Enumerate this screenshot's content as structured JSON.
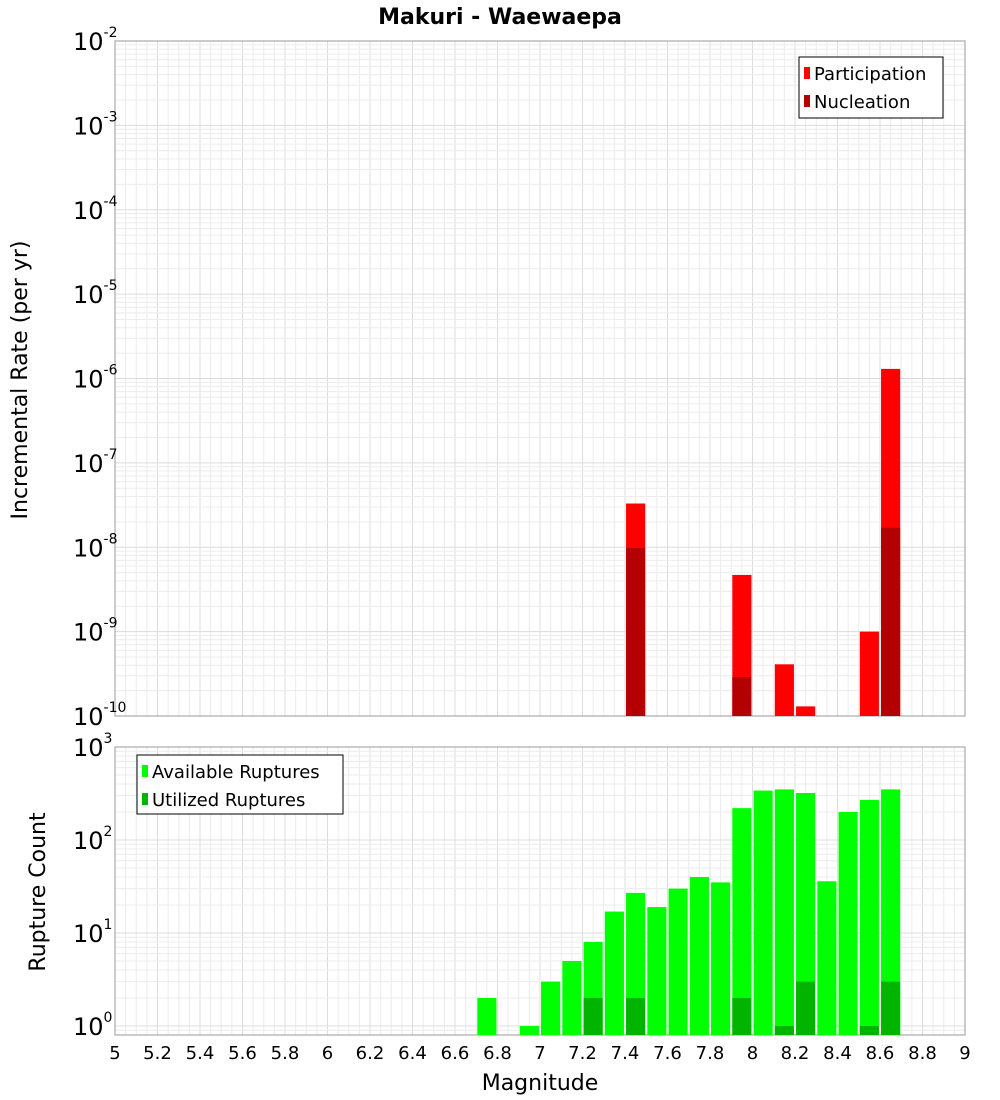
{
  "title": "Makuri - Waewaepa",
  "xlabel": "Magnitude",
  "x_ticks": [
    "5",
    "5.2",
    "5.4",
    "5.6",
    "5.8",
    "6",
    "6.2",
    "6.4",
    "6.6",
    "6.8",
    "7",
    "7.2",
    "7.4",
    "7.6",
    "7.8",
    "8",
    "8.2",
    "8.4",
    "8.6",
    "8.8",
    "9"
  ],
  "chart_data": [
    {
      "type": "bar",
      "ylabel": "Incremental Rate (per yr)",
      "yscale": "log",
      "xlim": [
        5,
        9
      ],
      "ylim": [
        1e-10,
        0.01
      ],
      "y_ticks": {
        "base": "10",
        "exponents": [
          "-10",
          "-9",
          "-8",
          "-7",
          "-6",
          "-5",
          "-4",
          "-3",
          "-2"
        ]
      },
      "grid": true,
      "legend_position": "top-right",
      "bar_width": 0.09,
      "series": [
        {
          "name": "Participation",
          "color": "#ff0000",
          "x": [
            7.45,
            7.95,
            8.15,
            8.25,
            8.55,
            8.65
          ],
          "values": [
            3.3e-08,
            4.7e-09,
            4.1e-10,
            1.3e-10,
            1e-09,
            1.3e-06
          ]
        },
        {
          "name": "Nucleation",
          "color": "#b40000",
          "x": [
            7.45,
            7.95,
            8.65
          ],
          "values": [
            9.8e-09,
            2.9e-10,
            1.7e-08
          ]
        }
      ]
    },
    {
      "type": "bar",
      "ylabel": "Rupture Count",
      "yscale": "log",
      "xlim": [
        5,
        9
      ],
      "ylim": [
        0.8,
        1000
      ],
      "y_ticks": {
        "base": "10",
        "exponents": [
          "0",
          "1",
          "2",
          "3"
        ]
      },
      "grid": true,
      "legend_position": "top-left",
      "bar_width": 0.09,
      "series": [
        {
          "name": "Available Ruptures",
          "color": "#00ff00",
          "x": [
            6.75,
            6.95,
            7.05,
            7.15,
            7.25,
            7.35,
            7.45,
            7.55,
            7.65,
            7.75,
            7.85,
            7.95,
            8.05,
            8.15,
            8.25,
            8.35,
            8.45,
            8.55,
            8.65
          ],
          "values": [
            2,
            1,
            3,
            5,
            8,
            17,
            27,
            19,
            30,
            40,
            35,
            220,
            340,
            350,
            320,
            36,
            200,
            270,
            350
          ]
        },
        {
          "name": "Utilized Ruptures",
          "color": "#00b400",
          "x": [
            7.25,
            7.45,
            7.95,
            8.15,
            8.25,
            8.55,
            8.65
          ],
          "values": [
            2,
            2,
            2,
            1,
            3,
            1,
            3
          ]
        }
      ]
    }
  ]
}
